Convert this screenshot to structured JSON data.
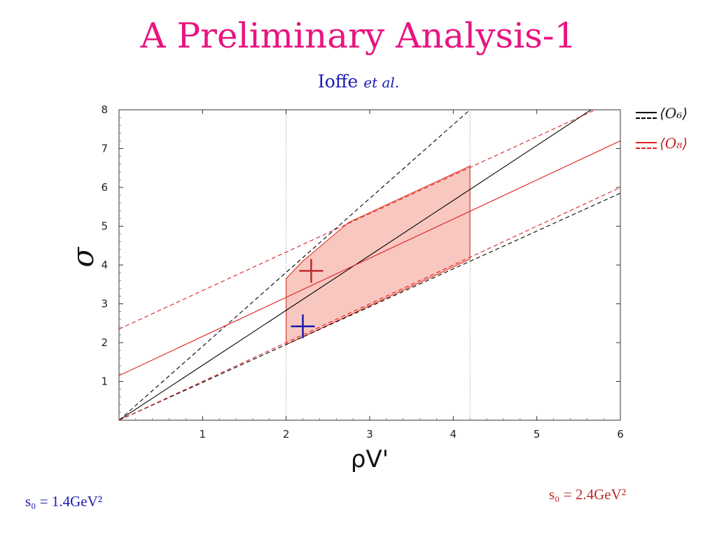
{
  "title": "A Preliminary Analysis-1",
  "subtitle": {
    "author": "Ioffe",
    "suffix": "et al."
  },
  "legend": [
    {
      "label": "⟨O₆⟩",
      "color": "#000000"
    },
    {
      "label": "⟨O₈⟩",
      "color": "#e02020"
    }
  ],
  "annotations": {
    "left_s0": "s₀ = 1.4GeV²",
    "right_s0": "s₀ = 2.4GeV²"
  },
  "colors": {
    "blue": "#1a1ab4",
    "red": "#c0282a",
    "title": "#e8157f"
  },
  "chart_data": {
    "type": "line",
    "xlabel": "ρV'",
    "ylabel": "σ",
    "xlim": [
      0,
      6
    ],
    "ylim": [
      0,
      8
    ],
    "xticks": [
      "1",
      "2",
      "3",
      "4",
      "5",
      "6"
    ],
    "yticks": [
      "1",
      "2",
      "3",
      "4",
      "5",
      "6",
      "7",
      "8"
    ],
    "grid": false,
    "vlines": [
      2,
      4.2
    ],
    "series": [
      {
        "name": "⟨O₆⟩",
        "color": "#000000",
        "dash": false,
        "x": [
          0,
          5.65
        ],
        "y": [
          0,
          8
        ]
      },
      {
        "name": "⟨O₆⟩",
        "color": "#000000",
        "dash": true,
        "x": [
          0,
          4.2
        ],
        "y": [
          0,
          8
        ]
      },
      {
        "name": "⟨O₆⟩",
        "color": "#000000",
        "dash": true,
        "x": [
          0,
          6
        ],
        "y": [
          0,
          5.85
        ]
      },
      {
        "name": "⟨O₈⟩",
        "color": "#e02020",
        "dash": false,
        "x": [
          0,
          6
        ],
        "y": [
          1.15,
          7.2
        ]
      },
      {
        "name": "⟨O₈⟩",
        "color": "#e02020",
        "dash": true,
        "x": [
          0,
          5.7
        ],
        "y": [
          2.35,
          8
        ]
      },
      {
        "name": "⟨O₈⟩",
        "color": "#e02020",
        "dash": true,
        "x": [
          0,
          6
        ],
        "y": [
          0,
          6
        ]
      }
    ],
    "region": {
      "x": [
        2,
        2,
        2.2,
        2.75,
        4.2,
        4.2,
        2
      ],
      "y": [
        1.95,
        3.65,
        4.1,
        5.1,
        6.55,
        4.15,
        1.95
      ]
    },
    "markers": [
      {
        "x": 2.3,
        "y": 3.85,
        "color": "#c0282a"
      },
      {
        "x": 2.2,
        "y": 2.42,
        "color": "#1a1ab4"
      }
    ]
  }
}
